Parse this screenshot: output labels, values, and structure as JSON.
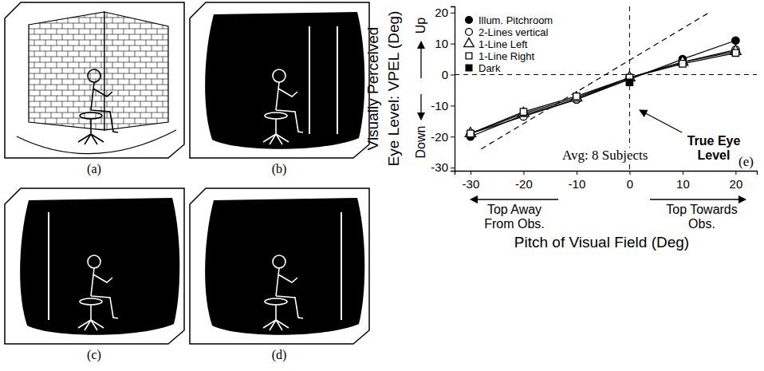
{
  "figure_panels": [
    "(a)",
    "(b)",
    "(c)",
    "(d)"
  ],
  "chart_data": {
    "type": "line",
    "xlabel": "Pitch of Visual Field (Deg)",
    "ylabel": "Visually Perceived Eye Level: VPEL (Deg)",
    "annotations": {
      "up": "Up",
      "down": "Down",
      "x_left": "Top Away From Obs.",
      "x_right": "Top Towards Obs.",
      "true_eye_level": "True Eye Level",
      "subjects": "Avg: 8 Subjects",
      "panel": "(e)"
    },
    "x": [
      -30,
      -20,
      -10,
      0,
      10,
      20
    ],
    "series": [
      {
        "name": "Illum. Pitchroom",
        "color": "#000000",
        "marker": "circle",
        "line_style": "solid",
        "values": [
          -20,
          -13,
          -8,
          -1.5,
          5,
          11
        ]
      },
      {
        "name": "2-Lines vertical",
        "color": "#000000",
        "marker": "circle-open",
        "line_style": "solid",
        "values": [
          -19,
          -13.5,
          -8,
          -1,
          4,
          8
        ]
      },
      {
        "name": "1-Line Left",
        "color": "#000000",
        "marker": "triangle-open",
        "line_style": "solid",
        "values": [
          -19,
          -12.5,
          -7.5,
          -1,
          4,
          7.5
        ]
      },
      {
        "name": "1-Line Right",
        "color": "#000000",
        "marker": "square-open",
        "line_style": "solid",
        "values": [
          -19,
          -12,
          -7,
          -1,
          3.5,
          7
        ]
      },
      {
        "name": "Dark",
        "color": "#000000",
        "marker": "square",
        "line_style": "none",
        "values": [
          null,
          null,
          null,
          -2.5,
          null,
          null
        ]
      }
    ],
    "reference_lines": [
      {
        "x": [
          -28,
          15
        ],
        "values": [
          -24,
          20
        ],
        "line_style": "dashed"
      }
    ],
    "hlines": [
      0
    ],
    "vlines": [
      0
    ],
    "xlim": [
      -33,
      24
    ],
    "ylim": [
      -31,
      22
    ],
    "xticks": [
      -30,
      -20,
      -10,
      0,
      10,
      20
    ],
    "yticks": [
      -30,
      -20,
      -10,
      0,
      10,
      20
    ],
    "grid": false,
    "legend": "upper left"
  }
}
